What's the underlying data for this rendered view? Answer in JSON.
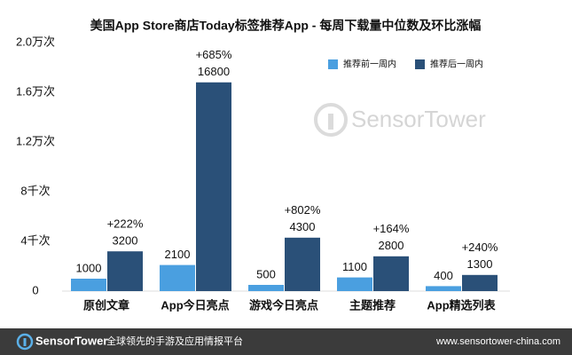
{
  "chart_data": {
    "type": "bar",
    "title": "美国App Store商店Today标签推荐App - 每周下载量中位数及环比涨幅",
    "categories": [
      "原创文章",
      "App今日亮点",
      "游戏今日亮点",
      "主题推荐",
      "App精选列表"
    ],
    "series": [
      {
        "name": "推荐前一周内",
        "color": "#4a9fe0",
        "values": [
          1000,
          2100,
          500,
          1100,
          400
        ]
      },
      {
        "name": "推荐后一周内",
        "color": "#2a5078",
        "values": [
          3200,
          16800,
          4300,
          2800,
          1300
        ]
      }
    ],
    "growth_labels": [
      "+222%",
      "+685%",
      "+802%",
      "+164%",
      "+240%"
    ],
    "ylim": [
      0,
      20000
    ],
    "yticks": [
      0,
      {
        "value": 4000,
        "label": "4千次"
      },
      {
        "value": 8000,
        "label": "8千次"
      },
      {
        "value": 12000,
        "label": "1.2万次"
      },
      {
        "value": 16000,
        "label": "1.6万次"
      },
      {
        "value": 20000,
        "label": "2.0万次"
      }
    ],
    "grid": false,
    "legend": "top-right"
  },
  "watermark": "SensorTower",
  "footer": {
    "brand": "SensorTower",
    "slogan": "全球领先的手游及应用情报平台",
    "url": "www.sensortower-china.com"
  }
}
